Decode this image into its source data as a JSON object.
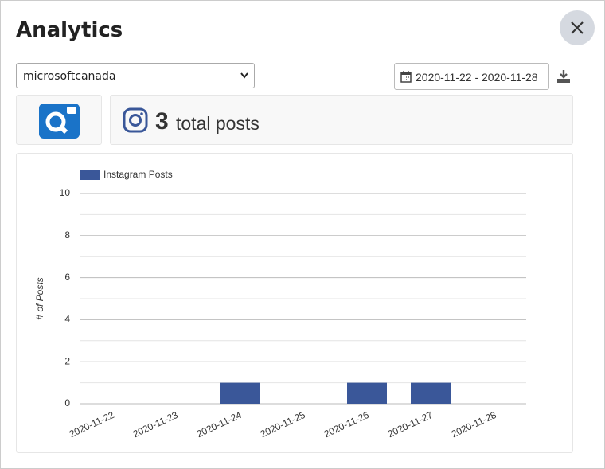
{
  "header": {
    "title": "Analytics"
  },
  "controls": {
    "account": "microsoftcanada",
    "date_range": "2020-11-22 - 2020-11-28"
  },
  "summary": {
    "count": "3",
    "label": "total posts"
  },
  "chart_data": {
    "type": "bar",
    "ylabel": "# of Posts",
    "categories": [
      "2020-11-22",
      "2020-11-23",
      "2020-11-24",
      "2020-11-25",
      "2020-11-26",
      "2020-11-27",
      "2020-11-28"
    ],
    "series": [
      {
        "name": "Instagram Posts",
        "color": "#3a5799",
        "values": [
          0,
          0,
          1,
          0,
          1,
          1,
          0
        ]
      }
    ],
    "ylim": [
      0,
      10
    ],
    "yticks": [
      0,
      2,
      4,
      6,
      8,
      10
    ],
    "minor_yticks": [
      1,
      3,
      5,
      7,
      9
    ],
    "grid": true,
    "legend": "top-left"
  }
}
